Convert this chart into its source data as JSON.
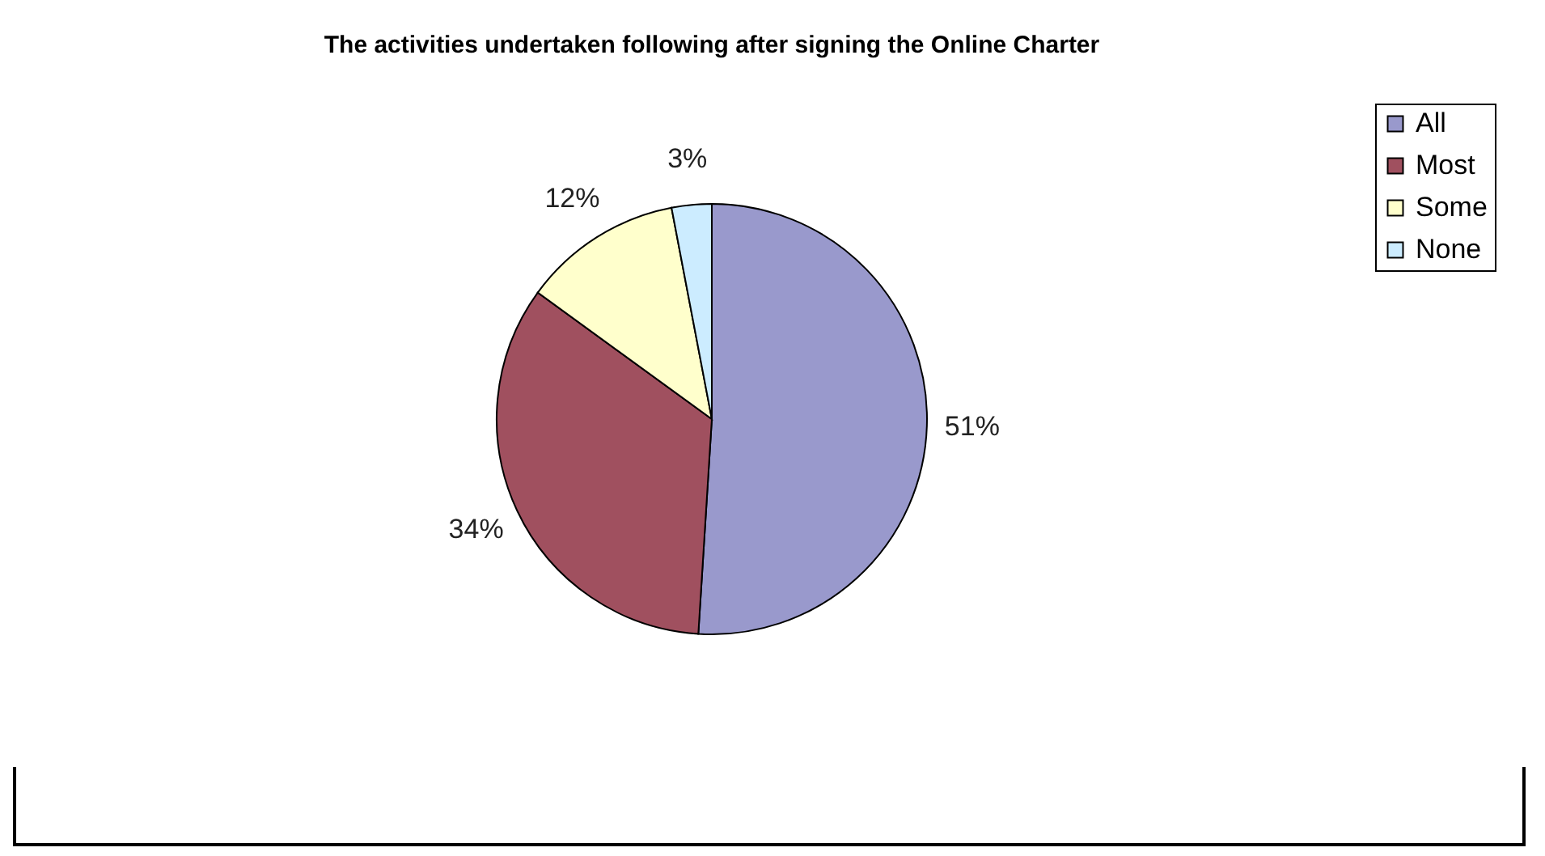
{
  "chart_data": {
    "type": "pie",
    "title": "The activities undertaken following after signing the Online Charter",
    "categories": [
      "All",
      "Most",
      "Some",
      "None"
    ],
    "values": [
      51,
      34,
      12,
      3
    ],
    "colors": [
      "#9999cc",
      "#a0505f",
      "#ffffcc",
      "#ccecff"
    ],
    "value_labels": [
      "51%",
      "34%",
      "12%",
      "3%"
    ],
    "legend": "right"
  }
}
